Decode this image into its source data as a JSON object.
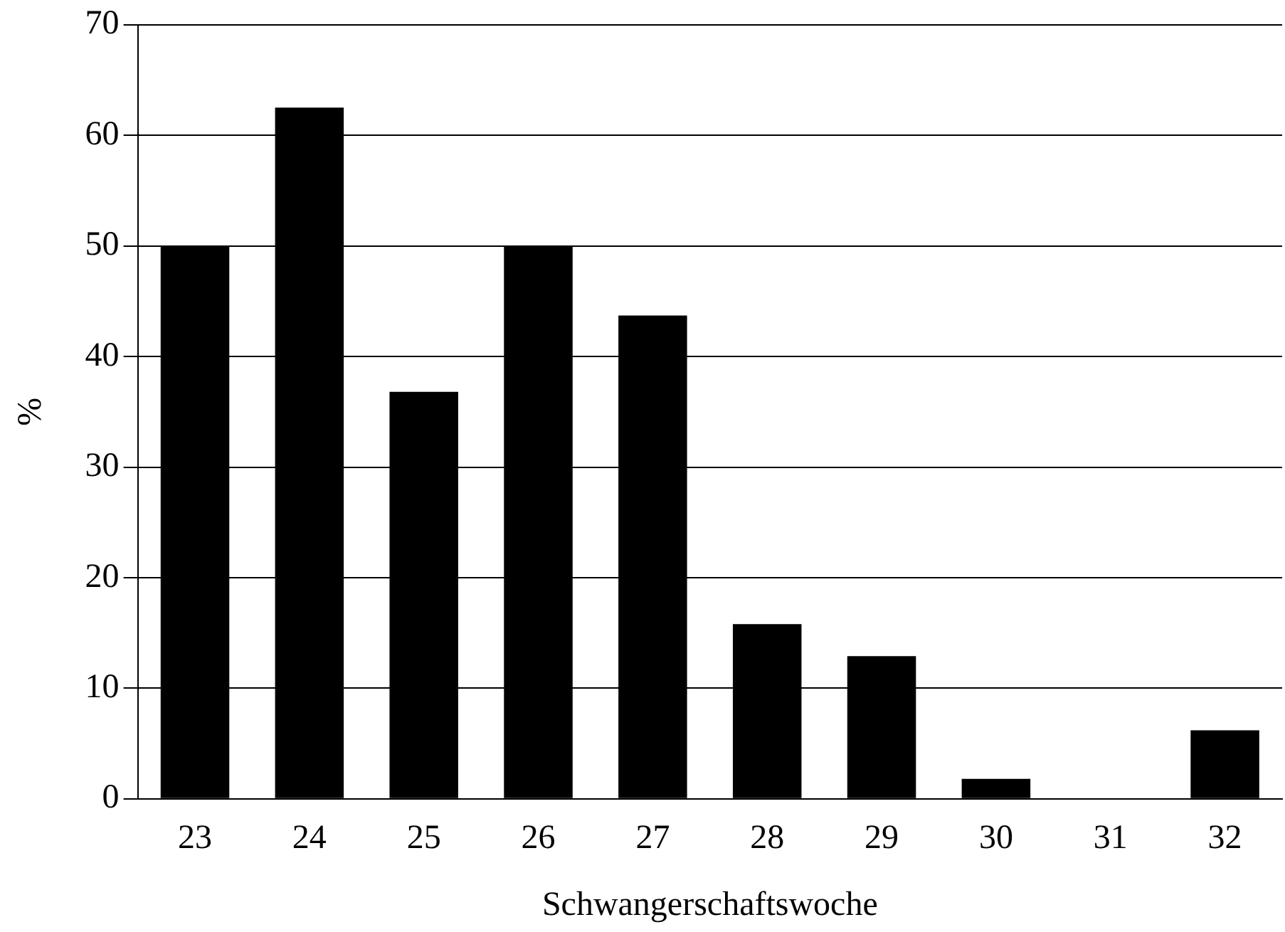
{
  "chart_data": {
    "type": "bar",
    "xlabel": "Schwangerschaftswoche",
    "ylabel": "%",
    "categories": [
      "23",
      "24",
      "25",
      "26",
      "27",
      "28",
      "29",
      "30",
      "31",
      "32"
    ],
    "values": [
      50,
      62.5,
      36.8,
      50,
      43.7,
      15.8,
      12.9,
      1.8,
      0,
      6.2
    ],
    "color": "#000000",
    "ylim": [
      0,
      70
    ],
    "yticks": [
      0,
      10,
      20,
      30,
      40,
      50,
      60,
      70
    ],
    "grid": "y",
    "legend": false
  }
}
